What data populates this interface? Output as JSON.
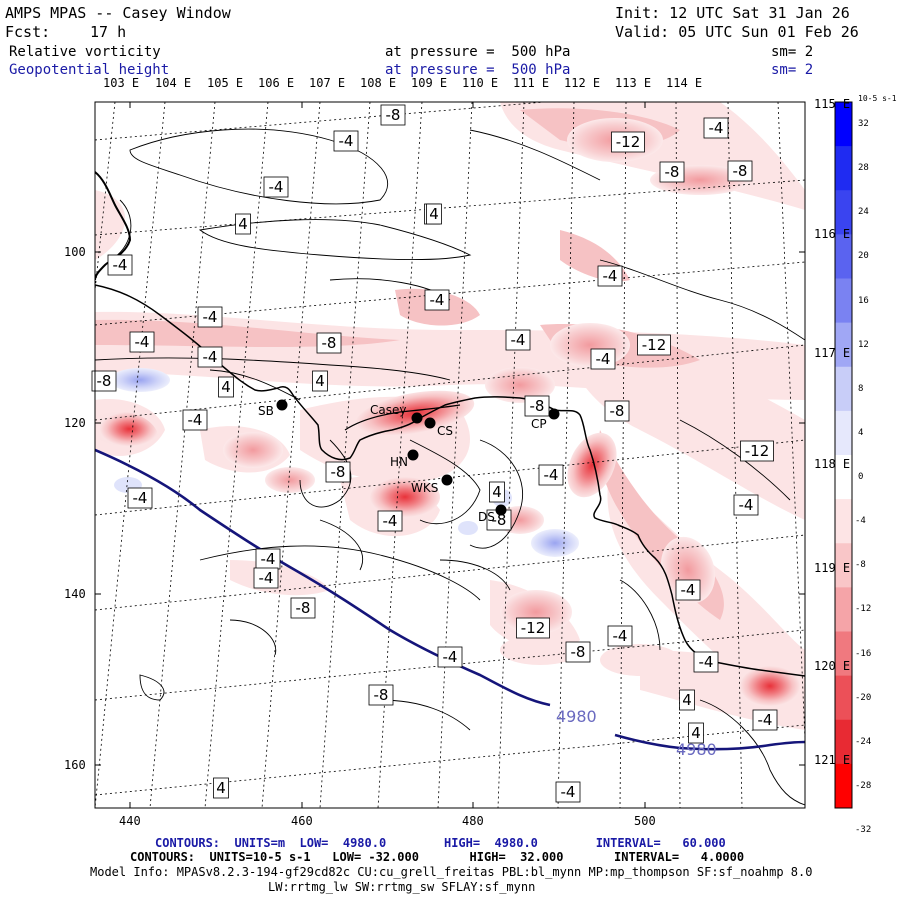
{
  "header": {
    "title": "AMPS MPAS -- Casey Window",
    "init": "Init: 12 UTC Sat 31 Jan 26",
    "fcst": "Fcst:",
    "fcst_hours": "17 h",
    "valid": "Valid: 05 UTC Sun 01 Feb 26"
  },
  "fields": [
    {
      "name": "Relative vorticity",
      "pressure": "at pressure =  500 hPa",
      "sm": "sm= 2",
      "color": "#000000"
    },
    {
      "name": "Geopotential height",
      "pressure": "at pressure =  500 hPa",
      "sm": "sm= 2",
      "color": "#1a1aa6"
    }
  ],
  "lon_top": [
    "103 E",
    "104 E",
    "105 E",
    "106 E",
    "107 E",
    "108 E",
    "109 E",
    "110 E",
    "111 E",
    "112 E",
    "113 E",
    "114 E"
  ],
  "lon_right": [
    "115 E",
    "116 E",
    "117 E",
    "118 E",
    "119 E",
    "120 E",
    "121 E"
  ],
  "x_ticks": [
    "440",
    "460",
    "480",
    "500"
  ],
  "y_ticks": [
    "100",
    "120",
    "140",
    "160"
  ],
  "colorbar": {
    "units": "10-5 s-1",
    "labels": [
      "32",
      "28",
      "24",
      "20",
      "16",
      "12",
      "8",
      "4",
      "0",
      "-4",
      "-8",
      "-12",
      "-16",
      "-20",
      "-24",
      "-28",
      "-32"
    ]
  },
  "stations": [
    "Casey",
    "CS",
    "HN",
    "SB",
    "CP",
    "WKS",
    "DS"
  ],
  "contour_labels": {
    "vorticity": [
      "-8",
      "-4",
      "-4",
      "4",
      "4",
      "-4",
      "-4",
      "-4",
      "-4",
      "-8",
      "-4",
      "-8",
      "4",
      "4",
      "-4",
      "-4",
      "-12",
      "-8",
      "-8",
      "-4",
      "-4",
      "-4",
      "-12",
      "-8",
      "-8",
      "-8",
      "-4",
      "-4",
      "-4",
      "-8",
      "-12",
      "-4",
      "-4",
      "-8",
      "-12",
      "-4",
      "-4",
      "-8",
      "-4",
      "-4",
      "4",
      "4",
      "-8",
      "-4",
      "-4",
      "4",
      "-4",
      "4",
      "4"
    ],
    "height": [
      "4980",
      "4980"
    ]
  },
  "footer": {
    "line1": "CONTOURS:  UNITS=m  LOW=  4980.0        HIGH=  4980.0        INTERVAL=   60.000",
    "line2": "CONTOURS:  UNITS=10-5 s-1   LOW= -32.000       HIGH=  32.000       INTERVAL=   4.0000",
    "line3": "Model Info: MPASv8.2.3-194-gf29cd82c CU:cu_grell_freitas PBL:bl_mynn MP:mp_thompson SF:sf_noahmp 8.0",
    "line4": "LW:rrtmg_lw SW:rrtmg_sw SFLAY:sf_mynn"
  }
}
